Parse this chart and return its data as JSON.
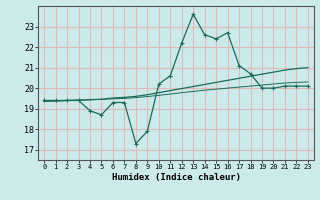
{
  "xlabel": "Humidex (Indice chaleur)",
  "bg_color": "#cceaea",
  "grid_color": "#ddbbbb",
  "line_color": "#1a6b5a",
  "xlim": [
    -0.5,
    23.5
  ],
  "ylim": [
    16.5,
    24.0
  ],
  "yticks": [
    17,
    18,
    19,
    20,
    21,
    22,
    23
  ],
  "xticks": [
    0,
    1,
    2,
    3,
    4,
    5,
    6,
    7,
    8,
    9,
    10,
    11,
    12,
    13,
    14,
    15,
    16,
    17,
    18,
    19,
    20,
    21,
    22,
    23
  ],
  "main_x": [
    0,
    1,
    2,
    3,
    4,
    5,
    6,
    7,
    8,
    9,
    10,
    11,
    12,
    13,
    14,
    15,
    16,
    17,
    18,
    19,
    20,
    21,
    22,
    23
  ],
  "main_y": [
    19.4,
    19.4,
    19.4,
    19.4,
    18.9,
    18.7,
    19.3,
    19.3,
    17.3,
    17.9,
    20.2,
    20.6,
    22.2,
    23.6,
    22.6,
    22.4,
    22.7,
    21.1,
    20.7,
    20.0,
    20.0,
    20.1,
    20.1,
    20.1
  ],
  "line2_x": [
    0,
    1,
    2,
    3,
    4,
    5,
    6,
    7,
    8,
    9,
    10,
    11,
    12,
    13,
    14,
    15,
    16,
    17,
    18,
    19,
    20,
    21,
    22,
    23
  ],
  "line2_y": [
    19.38,
    19.38,
    19.4,
    19.42,
    19.44,
    19.46,
    19.52,
    19.55,
    19.6,
    19.68,
    19.78,
    19.88,
    19.98,
    20.08,
    20.18,
    20.28,
    20.38,
    20.48,
    20.58,
    20.68,
    20.78,
    20.88,
    20.95,
    21.0
  ],
  "line3_x": [
    0,
    1,
    2,
    3,
    4,
    5,
    6,
    7,
    8,
    9,
    10,
    11,
    12,
    13,
    14,
    15,
    16,
    17,
    18,
    19,
    20,
    21,
    22,
    23
  ],
  "line3_y": [
    19.35,
    19.37,
    19.39,
    19.41,
    19.43,
    19.45,
    19.48,
    19.5,
    19.54,
    19.59,
    19.65,
    19.71,
    19.78,
    19.84,
    19.9,
    19.95,
    20.0,
    20.05,
    20.1,
    20.15,
    20.2,
    20.25,
    20.28,
    20.3
  ]
}
